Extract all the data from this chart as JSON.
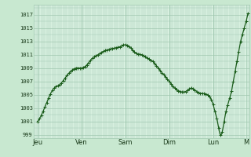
{
  "title": "",
  "bg_color": "#c8e8d0",
  "plot_bg_color": "#d8f0e0",
  "line_color": "#1a5c1a",
  "marker_color": "#1a5c1a",
  "grid_color": "#a0c8b0",
  "tick_label_color": "#1a3a1a",
  "yticks": [
    999,
    1001,
    1003,
    1005,
    1007,
    1009,
    1011,
    1013,
    1015,
    1017
  ],
  "xtick_labels": [
    "Jeu",
    "Ven",
    "Sam",
    "Dim",
    "Lun",
    "M"
  ],
  "xtick_positions": [
    0,
    24,
    48,
    72,
    96,
    114
  ],
  "ylim": [
    998.5,
    1018.5
  ],
  "xlim": [
    -2,
    116
  ],
  "keypoints": [
    [
      0,
      1001.0
    ],
    [
      3,
      1002.5
    ],
    [
      6,
      1004.5
    ],
    [
      9,
      1006.0
    ],
    [
      12,
      1006.5
    ],
    [
      15,
      1007.5
    ],
    [
      18,
      1008.5
    ],
    [
      21,
      1009.0
    ],
    [
      24,
      1009.0
    ],
    [
      27,
      1009.5
    ],
    [
      30,
      1010.5
    ],
    [
      33,
      1011.0
    ],
    [
      36,
      1011.5
    ],
    [
      39,
      1011.8
    ],
    [
      42,
      1012.0
    ],
    [
      45,
      1012.2
    ],
    [
      48,
      1012.5
    ],
    [
      51,
      1012.0
    ],
    [
      54,
      1011.2
    ],
    [
      57,
      1011.0
    ],
    [
      60,
      1010.5
    ],
    [
      63,
      1010.0
    ],
    [
      66,
      1009.0
    ],
    [
      69,
      1008.0
    ],
    [
      72,
      1007.0
    ],
    [
      75,
      1006.0
    ],
    [
      78,
      1005.5
    ],
    [
      81,
      1005.5
    ],
    [
      84,
      1006.0
    ],
    [
      87,
      1005.5
    ],
    [
      90,
      1005.2
    ],
    [
      93,
      1005.0
    ],
    [
      96,
      1003.5
    ],
    [
      97,
      1002.5
    ],
    [
      98,
      1001.5
    ],
    [
      99,
      1000.0
    ],
    [
      100,
      999.0
    ],
    [
      101,
      999.5
    ],
    [
      102,
      1001.0
    ],
    [
      103,
      1002.5
    ],
    [
      104,
      1003.5
    ],
    [
      105,
      1004.5
    ],
    [
      106,
      1005.5
    ],
    [
      107,
      1007.0
    ],
    [
      108,
      1008.5
    ],
    [
      109,
      1010.0
    ],
    [
      110,
      1011.5
    ],
    [
      111,
      1013.0
    ],
    [
      112,
      1014.0
    ],
    [
      113,
      1015.0
    ],
    [
      114,
      1016.0
    ],
    [
      115,
      1017.2
    ]
  ]
}
